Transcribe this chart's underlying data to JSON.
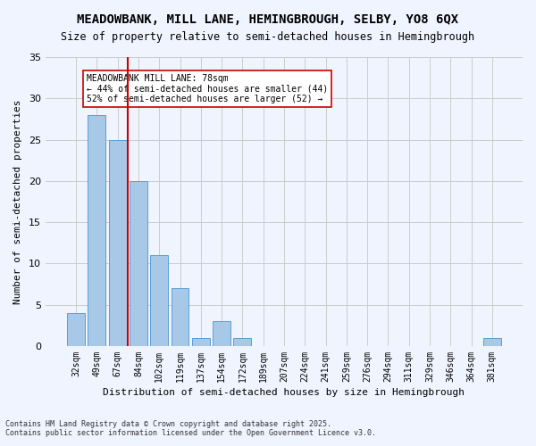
{
  "title": "MEADOWBANK, MILL LANE, HEMINGBROUGH, SELBY, YO8 6QX",
  "subtitle": "Size of property relative to semi-detached houses in Hemingbrough",
  "xlabel": "Distribution of semi-detached houses by size in Hemingbrough",
  "ylabel": "Number of semi-detached properties",
  "categories": [
    "32sqm",
    "49sqm",
    "67sqm",
    "84sqm",
    "102sqm",
    "119sqm",
    "137sqm",
    "154sqm",
    "172sqm",
    "189sqm",
    "207sqm",
    "224sqm",
    "241sqm",
    "259sqm",
    "276sqm",
    "294sqm",
    "311sqm",
    "329sqm",
    "346sqm",
    "364sqm",
    "381sqm"
  ],
  "values": [
    4,
    28,
    25,
    20,
    11,
    7,
    1,
    3,
    1,
    0,
    0,
    0,
    0,
    0,
    0,
    0,
    0,
    0,
    0,
    0,
    1
  ],
  "bar_color": "#a8c8e8",
  "bar_edge_color": "#5a9fd4",
  "bar_alpha": 0.85,
  "grid_color": "#cccccc",
  "background_color": "#f0f4ff",
  "property_line_x": 2.5,
  "property_sqm": "78sqm",
  "pct_smaller": 44,
  "pct_larger": 52,
  "annotation_text_line1": "MEADOWBANK MILL LANE: 78sqm",
  "annotation_text_line2": "← 44% of semi-detached houses are smaller (44)",
  "annotation_text_line3": "52% of semi-detached houses are larger (52) →",
  "red_line_color": "#cc0000",
  "annotation_box_color": "#ffffff",
  "annotation_box_edge": "#cc0000",
  "ylim": [
    0,
    35
  ],
  "yticks": [
    0,
    5,
    10,
    15,
    20,
    25,
    30,
    35
  ],
  "footer_line1": "Contains HM Land Registry data © Crown copyright and database right 2025.",
  "footer_line2": "Contains public sector information licensed under the Open Government Licence v3.0."
}
